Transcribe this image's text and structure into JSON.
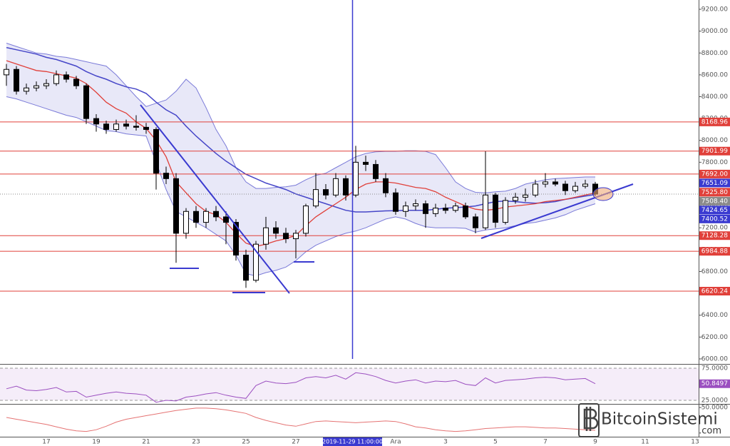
{
  "chart_data": {
    "type": "candlestick",
    "categories": [
      null,
      null,
      null,
      null,
      "17",
      null,
      null,
      null,
      null,
      "19",
      null,
      null,
      null,
      null,
      "21",
      null,
      null,
      null,
      null,
      "23",
      null,
      null,
      null,
      null,
      "25",
      null,
      null,
      null,
      null,
      "27",
      null,
      null,
      null,
      null,
      null,
      null,
      null,
      null,
      null,
      "Ara",
      null,
      null,
      null,
      null,
      "3",
      null,
      null,
      null,
      null,
      "5",
      null,
      null,
      null,
      null,
      "7",
      null,
      null,
      null,
      null,
      "9",
      null,
      null,
      null,
      null,
      "11",
      null,
      null,
      null,
      null,
      "13"
    ],
    "ylim": [
      5954,
      9285
    ],
    "yticks": [
      {
        "value": 6000,
        "label": "6000.00"
      },
      {
        "value": 6200,
        "label": "6200.00"
      },
      {
        "value": 6400,
        "label": "6400.00"
      },
      {
        "value": 6600,
        "label": "6600.00"
      },
      {
        "value": 6800,
        "label": "6800.00"
      },
      {
        "value": 7000,
        "label": "7000.00"
      },
      {
        "value": 7200,
        "label": "7200.00"
      },
      {
        "value": 7400,
        "label": "7400.00"
      },
      {
        "value": 7600,
        "label": "7600.00"
      },
      {
        "value": 7800,
        "label": "7800.00"
      },
      {
        "value": 8000,
        "label": "8000.00"
      },
      {
        "value": 8200,
        "label": "8200.00"
      },
      {
        "value": 8400,
        "label": "8400.00"
      },
      {
        "value": 8600,
        "label": "8600.00"
      },
      {
        "value": 8800,
        "label": "8800.00"
      },
      {
        "value": 9000,
        "label": "9000.00"
      },
      {
        "value": 9200,
        "label": "9200.00"
      }
    ],
    "candles": {
      "open": [
        8600,
        8650,
        8450,
        8480,
        8500,
        8520,
        8600,
        8560,
        8500,
        8200,
        8150,
        8100,
        8150,
        8130,
        8120,
        8100,
        7700,
        7650,
        7150,
        7350,
        7250,
        7350,
        7300,
        7250,
        6950,
        6720,
        7050,
        7200,
        7150,
        7100,
        7150,
        7400,
        7550,
        7500,
        7650,
        7500,
        7800,
        7780,
        7650,
        7520,
        7350,
        7400,
        7420,
        7330,
        7380,
        7360,
        7400,
        7300,
        7200,
        7500,
        7250,
        7450,
        7480,
        7500,
        7600,
        7620,
        7600,
        7540,
        7580,
        7600,
        null,
        null,
        null,
        null,
        null,
        null,
        null,
        null,
        null,
        null
      ],
      "high": [
        8700,
        8680,
        8520,
        8540,
        8560,
        8640,
        8630,
        8590,
        8520,
        8240,
        8180,
        8190,
        8190,
        8230,
        8160,
        8120,
        7760,
        7700,
        7380,
        7400,
        7380,
        7400,
        7350,
        7280,
        7000,
        7080,
        7300,
        7260,
        7200,
        7180,
        7420,
        7700,
        7600,
        7700,
        7680,
        7950,
        7860,
        7820,
        7700,
        7560,
        7440,
        7460,
        7450,
        7420,
        7420,
        7430,
        7430,
        7330,
        7900,
        7520,
        7480,
        7520,
        7560,
        7640,
        7700,
        7650,
        7630,
        7620,
        7640,
        7620,
        null,
        null,
        null,
        null,
        null,
        null,
        null,
        null,
        null,
        null
      ],
      "low": [
        8500,
        8420,
        8420,
        8450,
        8470,
        8500,
        8530,
        8470,
        8150,
        8080,
        8060,
        8080,
        8100,
        8090,
        8060,
        7550,
        7600,
        6880,
        7100,
        7200,
        7200,
        7260,
        7050,
        6900,
        6650,
        6700,
        7000,
        7100,
        7060,
        6920,
        7120,
        7380,
        7460,
        7480,
        7450,
        7480,
        7720,
        7620,
        7480,
        7320,
        7300,
        7360,
        7200,
        7300,
        7330,
        7340,
        7280,
        7150,
        7180,
        7200,
        7230,
        7420,
        7440,
        7480,
        7570,
        7580,
        7500,
        7520,
        7560,
        7490,
        null,
        null,
        null,
        null,
        null,
        null,
        null,
        null,
        null,
        null
      ],
      "close": [
        8650,
        8450,
        8480,
        8500,
        8520,
        8600,
        8560,
        8500,
        8200,
        8150,
        8100,
        8150,
        8130,
        8120,
        8100,
        7700,
        7650,
        7150,
        7350,
        7250,
        7350,
        7300,
        7250,
        6950,
        6720,
        7050,
        7200,
        7150,
        7100,
        7150,
        7400,
        7550,
        7500,
        7650,
        7500,
        7800,
        7780,
        7650,
        7520,
        7350,
        7400,
        7420,
        7330,
        7380,
        7360,
        7400,
        7300,
        7200,
        7500,
        7250,
        7450,
        7480,
        7500,
        7600,
        7620,
        7600,
        7540,
        7580,
        7600,
        7508.4,
        null,
        null,
        null,
        null,
        null,
        null,
        null,
        null,
        null,
        null
      ],
      "up_color": "#ffffff",
      "down_color": "#000000",
      "outline_color": "#000000"
    },
    "bands": {
      "upper": [
        8890,
        8860,
        8830,
        8800,
        8790,
        8770,
        8760,
        8740,
        8720,
        8700,
        8680,
        8600,
        8500,
        8400,
        8310,
        8340,
        8370,
        8450,
        8560,
        8480,
        8300,
        8100,
        7950,
        7750,
        7620,
        7560,
        7560,
        7570,
        7575,
        7590,
        7640,
        7680,
        7700,
        7750,
        7800,
        7850,
        7880,
        7895,
        7900,
        7900,
        7905,
        7905,
        7900,
        7870,
        7750,
        7620,
        7560,
        7525,
        7520,
        7530,
        7535,
        7560,
        7600,
        7620,
        7640,
        7650,
        7655,
        7660,
        7665,
        7665,
        null,
        null,
        null,
        null,
        null,
        null,
        null,
        null,
        null,
        null
      ],
      "middle": [
        8850,
        8830,
        8810,
        8790,
        8760,
        8740,
        8710,
        8680,
        8630,
        8590,
        8560,
        8520,
        8490,
        8470,
        8430,
        8350,
        8280,
        8230,
        8130,
        8040,
        7960,
        7880,
        7810,
        7750,
        7690,
        7650,
        7610,
        7580,
        7550,
        7510,
        7480,
        7450,
        7420,
        7390,
        7360,
        7345,
        7345,
        7350,
        7355,
        7357,
        7360,
        7360,
        7360,
        7370,
        7380,
        7385,
        7390,
        7400,
        7420,
        7440,
        7445,
        7440,
        7430,
        7425,
        7430,
        7440,
        7460,
        7475,
        7490,
        7505,
        null,
        null,
        null,
        null,
        null,
        null,
        null,
        null,
        null,
        null
      ],
      "lower": [
        8400,
        8380,
        8350,
        8320,
        8290,
        8260,
        8230,
        8210,
        8170,
        8130,
        8090,
        8080,
        8060,
        8050,
        8040,
        7800,
        7550,
        7350,
        7300,
        7250,
        7200,
        7140,
        7080,
        6950,
        6780,
        6760,
        6790,
        6810,
        6840,
        6900,
        6980,
        7040,
        7080,
        7120,
        7150,
        7170,
        7200,
        7240,
        7280,
        7300,
        7280,
        7240,
        7210,
        7200,
        7200,
        7200,
        7195,
        7160,
        7180,
        7190,
        7200,
        7220,
        7240,
        7250,
        7270,
        7290,
        7320,
        7360,
        7390,
        7420,
        null,
        null,
        null,
        null,
        null,
        null,
        null,
        null,
        null,
        null
      ],
      "band_color": "#7a7ad8",
      "middle_color": "#4646c8",
      "fill": "rgba(110,110,210,0.16)"
    },
    "ema": {
      "values": [
        8730,
        8700,
        8670,
        8640,
        8630,
        8610,
        8590,
        8570,
        8520,
        8440,
        8350,
        8290,
        8250,
        8170,
        8110,
        8000,
        7850,
        7620,
        7520,
        7420,
        7350,
        7320,
        7250,
        7150,
        7060,
        7030,
        7050,
        7080,
        7100,
        7130,
        7220,
        7300,
        7360,
        7420,
        7480,
        7550,
        7600,
        7620,
        7620,
        7610,
        7590,
        7570,
        7560,
        7530,
        7480,
        7440,
        7400,
        7370,
        7360,
        7370,
        7390,
        7400,
        7410,
        7420,
        7440,
        7450,
        7460,
        7480,
        7500,
        7520,
        null,
        null,
        null,
        null,
        null,
        null,
        null,
        null,
        null,
        null
      ],
      "color": "#e0403a"
    },
    "levels": [
      8168.96,
      7901.99,
      {
        "value": 7692,
        "label": "7692.00"
      },
      7128.28,
      6984.88,
      6620.24
    ],
    "level_color": "#e0403a",
    "price_labels": [
      {
        "value": 7651.09,
        "color": "#3a3ad0"
      },
      {
        "value": 7525.8,
        "label": "7525.80",
        "color": "#e0403a"
      },
      {
        "value": 7508.4,
        "label": "7508.40",
        "color": "#8a8a8a",
        "dotted": true
      },
      {
        "value": 7424.65,
        "color": "#3a3ad0"
      },
      {
        "value": 7400.52,
        "color": "#3a3ad0"
      }
    ],
    "crosshair": {
      "label": "2019-11-29 11:00:00",
      "color": "#3a3ad0"
    },
    "rsi": {
      "values": [
        43,
        47,
        41,
        40,
        42,
        45,
        38,
        39,
        30,
        33,
        36,
        38,
        36,
        35,
        33,
        22,
        25,
        24,
        30,
        32,
        35,
        37,
        33,
        30,
        28,
        48,
        55,
        52,
        51,
        53,
        60,
        62,
        60,
        64,
        58,
        68,
        66,
        62,
        56,
        52,
        55,
        57,
        52,
        55,
        54,
        56,
        50,
        48,
        60,
        52,
        56,
        57,
        58,
        60,
        61,
        60,
        57,
        58,
        59,
        50.8497,
        null,
        null,
        null,
        null,
        null,
        null,
        null,
        null,
        null,
        null
      ],
      "ylim": [
        19.4,
        80.6
      ],
      "yticks": [
        {
          "value": 75,
          "label": "75.0000"
        },
        {
          "value": 25,
          "label": "25.0000"
        }
      ],
      "color": "#9b4fc0",
      "band_fill": "rgba(190,140,220,0.16)",
      "label_color": "#9b4fc0"
    },
    "oscillator": {
      "values": [
        33,
        30,
        27,
        24,
        21,
        17,
        13,
        10,
        9,
        12,
        18,
        25,
        30,
        33,
        36,
        39,
        42,
        45,
        47,
        49,
        49,
        48,
        46,
        43,
        40,
        33,
        28,
        24,
        20,
        18,
        22,
        26,
        27,
        26,
        25,
        24,
        25,
        26,
        27,
        26,
        22,
        17,
        15,
        12,
        10,
        9,
        10,
        12,
        14,
        15,
        16,
        17,
        17,
        16,
        15,
        15,
        14,
        13,
        12,
        11,
        null,
        null,
        null,
        null,
        null,
        null,
        null,
        null,
        null,
        null
      ],
      "ylim": [
        0,
        55
      ],
      "yticks": [
        {
          "value": 50,
          "label": "50.0000"
        }
      ],
      "color": "#e57373"
    }
  },
  "watermark": {
    "name": "BitcoinSistemi",
    "suffix": ".com"
  }
}
